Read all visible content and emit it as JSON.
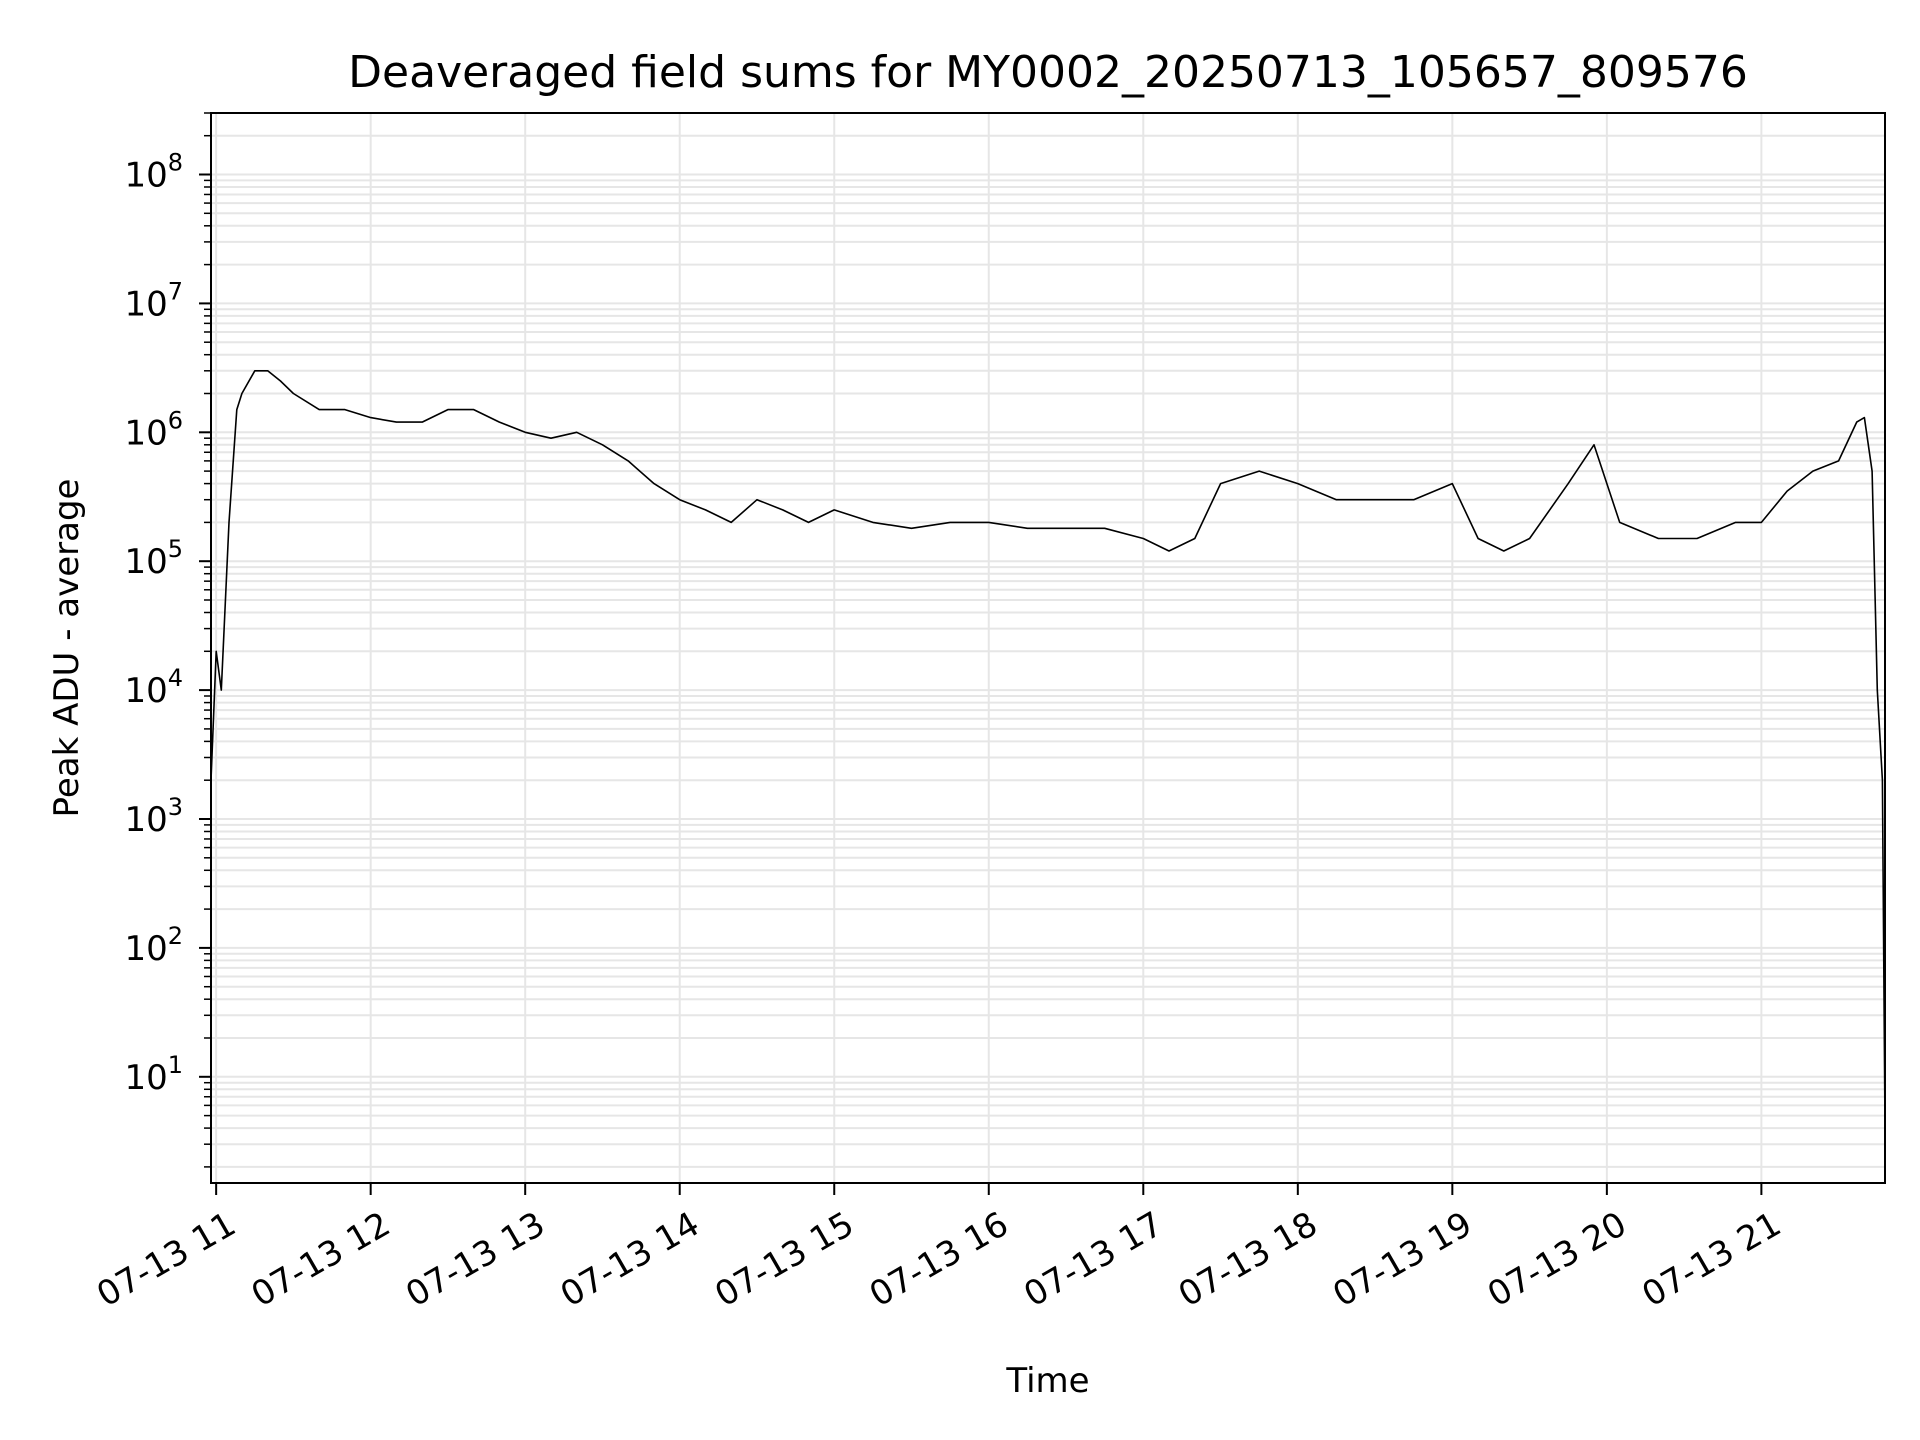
{
  "chart_data": {
    "type": "line",
    "title": "Deaveraged field sums for MY0002_20250713_105657_809576",
    "xlabel": "Time",
    "ylabel": "Peak ADU - average",
    "y_scale": "log",
    "ylim": [
      1.5,
      300000000
    ],
    "xlim": [
      "07-13 10:58",
      "07-13 21:48"
    ],
    "x_ticks": [
      "07-13 11",
      "07-13 12",
      "07-13 13",
      "07-13 14",
      "07-13 15",
      "07-13 16",
      "07-13 17",
      "07-13 18",
      "07-13 19",
      "07-13 20",
      "07-13 21"
    ],
    "y_ticks": [
      {
        "value": 10,
        "base": "10",
        "exp": "1"
      },
      {
        "value": 100,
        "base": "10",
        "exp": "2"
      },
      {
        "value": 1000,
        "base": "10",
        "exp": "3"
      },
      {
        "value": 10000,
        "base": "10",
        "exp": "4"
      },
      {
        "value": 100000,
        "base": "10",
        "exp": "5"
      },
      {
        "value": 1000000,
        "base": "10",
        "exp": "6"
      },
      {
        "value": 10000000,
        "base": "10",
        "exp": "7"
      },
      {
        "value": 100000000,
        "base": "10",
        "exp": "8"
      }
    ],
    "grid": true,
    "line_color": "#000000",
    "grid_color": "#e6e6e6",
    "series": [
      {
        "x": [
          "07-13 10:58",
          "07-13 11:00",
          "07-13 11:02",
          "07-13 11:05",
          "07-13 11:08",
          "07-13 11:10",
          "07-13 11:15",
          "07-13 11:20",
          "07-13 11:25",
          "07-13 11:30",
          "07-13 11:40",
          "07-13 11:50",
          "07-13 12:00",
          "07-13 12:10",
          "07-13 12:20",
          "07-13 12:30",
          "07-13 12:40",
          "07-13 12:50",
          "07-13 13:00",
          "07-13 13:10",
          "07-13 13:20",
          "07-13 13:30",
          "07-13 13:40",
          "07-13 13:50",
          "07-13 14:00",
          "07-13 14:10",
          "07-13 14:20",
          "07-13 14:30",
          "07-13 14:40",
          "07-13 14:50",
          "07-13 15:00",
          "07-13 15:15",
          "07-13 15:30",
          "07-13 15:45",
          "07-13 16:00",
          "07-13 16:15",
          "07-13 16:30",
          "07-13 16:45",
          "07-13 17:00",
          "07-13 17:10",
          "07-13 17:20",
          "07-13 17:30",
          "07-13 17:45",
          "07-13 18:00",
          "07-13 18:15",
          "07-13 18:30",
          "07-13 18:45",
          "07-13 19:00",
          "07-13 19:10",
          "07-13 19:20",
          "07-13 19:30",
          "07-13 19:45",
          "07-13 19:55",
          "07-13 20:05",
          "07-13 20:20",
          "07-13 20:35",
          "07-13 20:50",
          "07-13 21:00",
          "07-13 21:10",
          "07-13 21:20",
          "07-13 21:30",
          "07-13 21:37",
          "07-13 21:40",
          "07-13 21:43",
          "07-13 21:45",
          "07-13 21:47",
          "07-13 21:48"
        ],
        "values": [
          2000,
          20000,
          10000,
          200000,
          1500000,
          2000000,
          3000000,
          3000000,
          2500000,
          2000000,
          1500000,
          1500000,
          1300000,
          1200000,
          1200000,
          1500000,
          1500000,
          1200000,
          1000000,
          900000,
          1000000,
          800000,
          600000,
          400000,
          300000,
          250000,
          200000,
          300000,
          250000,
          200000,
          250000,
          200000,
          180000,
          200000,
          200000,
          180000,
          180000,
          180000,
          150000,
          120000,
          150000,
          400000,
          500000,
          400000,
          300000,
          300000,
          300000,
          400000,
          150000,
          120000,
          150000,
          400000,
          800000,
          200000,
          150000,
          150000,
          200000,
          200000,
          350000,
          500000,
          600000,
          1200000,
          1300000,
          500000,
          10000,
          2000,
          4
        ]
      }
    ]
  }
}
